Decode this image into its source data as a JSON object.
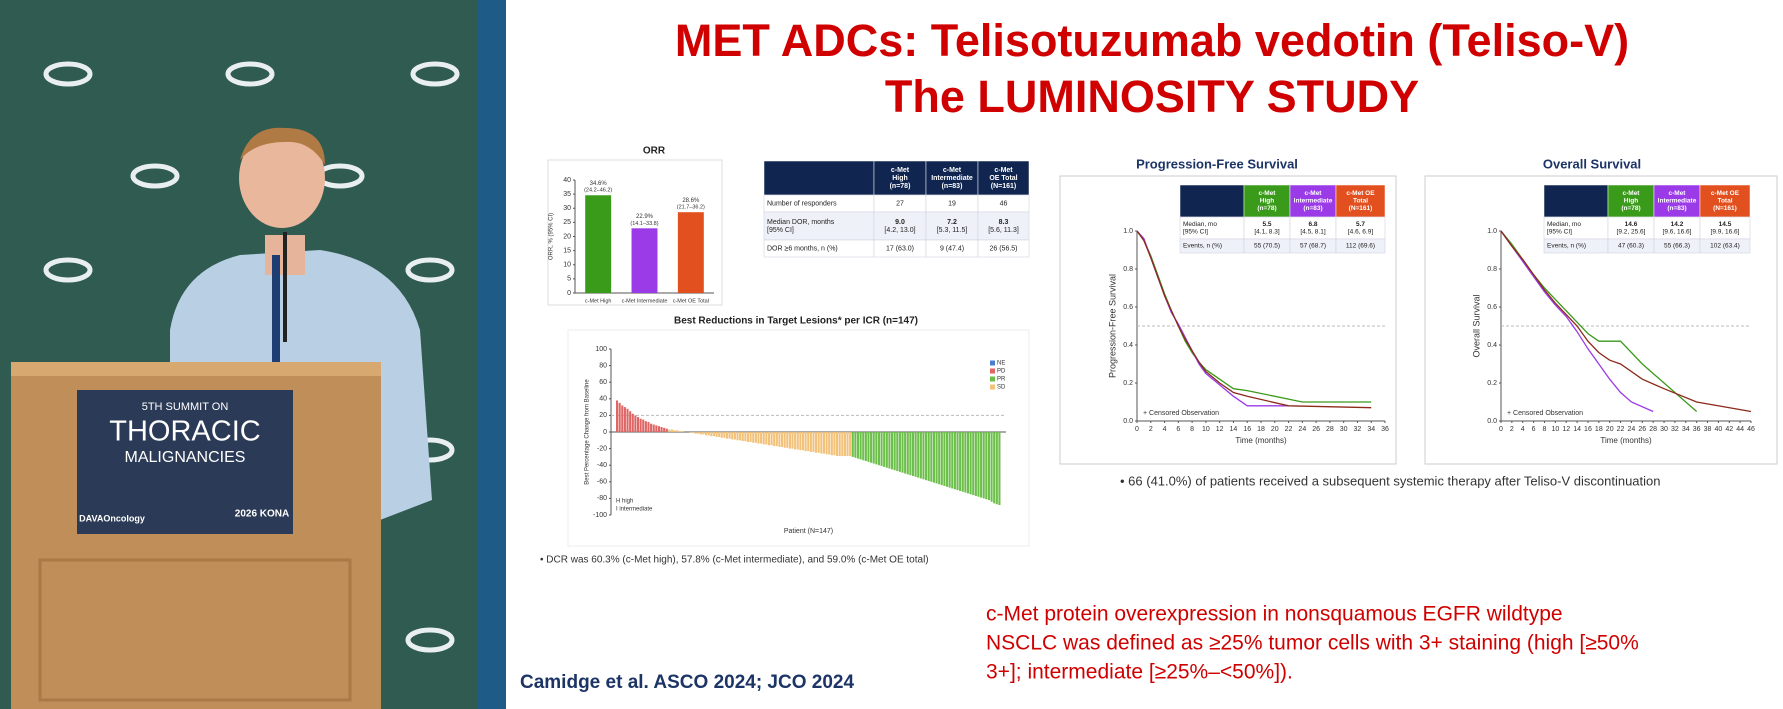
{
  "podium": {
    "line1": "5TH SUMMIT ON",
    "line2": "THORACIC",
    "line3": "MALIGNANCIES",
    "logo": "DAVAOncology",
    "badge": "2026 KONA"
  },
  "slide": {
    "title_line1": "MET ADCs: Telisotuzumab vedotin (Teliso-V)",
    "title_line2": "The LUMINOSITY STUDY",
    "dcr_note": "• DCR was 60.3% (c-Met high), 57.8% (c-Met intermediate), and 59.0% (c-Met OE total)",
    "subsequent_note": "•  66 (41.0%) of patients received a subsequent systemic therapy after Teliso-V discontinuation",
    "definition": [
      "c-Met protein overexpression in nonsquamous EGFR wildtype",
      "NSCLC was defined as ≥25% tumor cells with 3+ staining (high [≥50%",
      "3+]; intermediate [≥25%–<50%])."
    ],
    "citation": "Camidge et al.  ASCO 2024; JCO 2024"
  },
  "tables": {
    "dor": {
      "header_colors": [
        "#10254f",
        "#10254f",
        "#10254f",
        "#10254f"
      ],
      "header": [
        [],
        [
          "c-Met",
          "High",
          "(n=78)"
        ],
        [
          "c-Met",
          "Intermediate",
          "(n=83)"
        ],
        [
          "c-Met",
          "OE Total",
          "(N=161)"
        ]
      ],
      "rows": [
        [
          [
            "Number of responders"
          ],
          [
            "27"
          ],
          [
            "19"
          ],
          [
            "46"
          ]
        ],
        [
          [
            "Median DOR, months",
            "[95% CI]"
          ],
          [
            "9.0",
            "[4.2, 13.0]"
          ],
          [
            "7.2",
            "[5.3, 11.5]"
          ],
          [
            "8.3",
            "[5.6, 11.3]"
          ]
        ],
        [
          [
            "DOR ≥6 months, n (%)"
          ],
          [
            "17 (63.0)"
          ],
          [
            "9 (47.4)"
          ],
          [
            "26 (56.5)"
          ]
        ]
      ]
    },
    "pfs": {
      "header_colors": [
        "#10254f",
        "#3a9a1a",
        "#9b3be8",
        "#e2501f"
      ],
      "header": [
        [],
        [
          "c-Met",
          "High",
          "(n=78)"
        ],
        [
          "c-Met",
          "Intermediate",
          "(n=83)"
        ],
        [
          "c-Met OE",
          "Total",
          "(N=161)"
        ]
      ],
      "rows": [
        [
          [
            "Median, mo",
            "[95% CI]"
          ],
          [
            "5.5",
            "[4.1, 8.3]"
          ],
          [
            "6.8",
            "[4.5, 8.1]"
          ],
          [
            "5.7",
            "[4.6, 6.9]"
          ]
        ],
        [
          [
            "Events, n (%)"
          ],
          [
            "55 (70.5)"
          ],
          [
            "57 (68.7)"
          ],
          [
            "112 (69.6)"
          ]
        ]
      ]
    },
    "os": {
      "header_colors": [
        "#10254f",
        "#3a9a1a",
        "#9b3be8",
        "#e2501f"
      ],
      "header": [
        [],
        [
          "c-Met",
          "High",
          "(n=78)"
        ],
        [
          "c-Met",
          "Intermediate",
          "(n=83)"
        ],
        [
          "c-Met OE",
          "Total",
          "(N=161)"
        ]
      ],
      "rows": [
        [
          [
            "Median, mo",
            "[95% CI]"
          ],
          [
            "14.6",
            "[9.2, 25.6]"
          ],
          [
            "14.2",
            "[9.6, 16.6]"
          ],
          [
            "14.5",
            "[9.9, 16.6]"
          ]
        ],
        [
          [
            "Events, n (%)"
          ],
          [
            "47 (60.3)"
          ],
          [
            "55 (66.3)"
          ],
          [
            "102 (63.4)"
          ]
        ]
      ]
    }
  },
  "chart_data": [
    {
      "type": "bar",
      "title": "ORR",
      "ylabel": "ORR, % (95% CI)",
      "categories": [
        "c-Met High",
        "c-Met Intermediate",
        "c-Met OE Total"
      ],
      "values": [
        34.6,
        22.9,
        28.6
      ],
      "value_labels": [
        "34.6%",
        "22.9%",
        "28.6%"
      ],
      "ci_labels": [
        "(24.2–46.2)",
        "(14.1–33.8)",
        "(21.7–36.2)"
      ],
      "colors": [
        "#3a9a1a",
        "#9b3be8",
        "#e2501f"
      ],
      "ylim": [
        0,
        40
      ],
      "yticks": [
        0,
        5,
        10,
        15,
        20,
        25,
        30,
        35,
        40
      ]
    },
    {
      "type": "bar",
      "title": "Best Reductions in Target Lesions* per ICR (n=147)",
      "ylabel": "Best Percentage Change from Baseline",
      "xlabel": "Patient (N=147)",
      "annotations": [
        "H  high",
        "I  intermediate"
      ],
      "reference_line": 20,
      "ylim": [
        -100,
        100
      ],
      "yticks": [
        -100,
        -80,
        -60,
        -40,
        -20,
        0,
        20,
        40,
        60,
        80,
        100
      ],
      "series": [
        {
          "name": "NE",
          "color": "#4a7fd0",
          "values": []
        },
        {
          "name": "PD",
          "color": "#e06666",
          "values": [
            38,
            35,
            32,
            30,
            28,
            25,
            22,
            20,
            18,
            16,
            15,
            13,
            12,
            10,
            9,
            8,
            7,
            6,
            5,
            4
          ]
        },
        {
          "name": "PR",
          "color": "#6cbf4a",
          "values": [
            -30,
            -31,
            -32,
            -33,
            -34,
            -35,
            -36,
            -37,
            -38,
            -39,
            -40,
            -41,
            -42,
            -43,
            -44,
            -45,
            -46,
            -47,
            -48,
            -49,
            -50,
            -51,
            -52,
            -53,
            -54,
            -55,
            -56,
            -57,
            -58,
            -59,
            -60,
            -61,
            -62,
            -63,
            -64,
            -65,
            -66,
            -67,
            -68,
            -69,
            -70,
            -71,
            -72,
            -73,
            -74,
            -75,
            -76,
            -77,
            -78,
            -79,
            -80,
            -81,
            -82,
            -84,
            -86,
            -87,
            -88
          ]
        },
        {
          "name": "SD",
          "color": "#f2c27a",
          "values": [
            3,
            3,
            2,
            2,
            1,
            1,
            0,
            0,
            -1,
            -1,
            -2,
            -2,
            -3,
            -3,
            -4,
            -4,
            -5,
            -5,
            -6,
            -6,
            -7,
            -7,
            -8,
            -8,
            -9,
            -9,
            -10,
            -10,
            -11,
            -11,
            -12,
            -12,
            -13,
            -13,
            -14,
            -14,
            -15,
            -15,
            -16,
            -16,
            -17,
            -17,
            -18,
            -18,
            -19,
            -19,
            -20,
            -20,
            -21,
            -21,
            -22,
            -22,
            -23,
            -23,
            -24,
            -24,
            -25,
            -25,
            -26,
            -26,
            -27,
            -27,
            -28,
            -28,
            -29,
            -29,
            -29,
            -29,
            -29,
            -29
          ]
        }
      ],
      "draw_order": [
        "PD",
        "SD",
        "PR"
      ]
    },
    {
      "type": "line",
      "title": "Progression-Free Survival",
      "ylabel": "Progression-Free Survival",
      "xlabel": "Time (months)",
      "legend_text": "+ Censored Observation",
      "xlim": [
        0,
        36
      ],
      "xticks": [
        0,
        2,
        4,
        6,
        8,
        10,
        12,
        14,
        16,
        18,
        20,
        22,
        24,
        26,
        28,
        30,
        32,
        34,
        36
      ],
      "ylim": [
        0,
        1
      ],
      "yticks": [
        {
          "value": 0,
          "label": "0.0"
        },
        0.2,
        0.4,
        0.6,
        0.8,
        {
          "value": 1,
          "label": "1.0"
        }
      ],
      "series": [
        {
          "name": "c-Met High",
          "color": "#3a9a1a",
          "x": [
            0,
            1,
            2,
            3,
            4,
            5,
            6,
            7,
            8,
            9,
            10,
            12,
            14,
            16,
            24,
            34
          ],
          "y": [
            1,
            0.95,
            0.87,
            0.77,
            0.67,
            0.58,
            0.5,
            0.42,
            0.36,
            0.31,
            0.27,
            0.22,
            0.17,
            0.16,
            0.1,
            0.1
          ]
        },
        {
          "name": "c-Met Intermediate",
          "color": "#9b3be8",
          "x": [
            0,
            1,
            2,
            3,
            4,
            5,
            6,
            7,
            8,
            9,
            10,
            12,
            14,
            16,
            22
          ],
          "y": [
            1,
            0.96,
            0.86,
            0.76,
            0.66,
            0.57,
            0.51,
            0.44,
            0.37,
            0.3,
            0.25,
            0.19,
            0.13,
            0.08,
            0.08
          ]
        },
        {
          "name": "c-Met OE Total",
          "color": "#8b2a1a",
          "x": [
            0,
            1,
            2,
            3,
            4,
            5,
            6,
            7,
            8,
            9,
            10,
            12,
            14,
            16,
            22,
            34
          ],
          "y": [
            1,
            0.95,
            0.86,
            0.76,
            0.66,
            0.58,
            0.5,
            0.43,
            0.37,
            0.31,
            0.26,
            0.2,
            0.15,
            0.13,
            0.08,
            0.07
          ]
        }
      ]
    },
    {
      "type": "line",
      "title": "Overall Survival",
      "ylabel": "Overall Survival",
      "xlabel": "Time (months)",
      "legend_text": "+ Censored Observation",
      "xlim": [
        0,
        46
      ],
      "xticks": [
        0,
        2,
        4,
        6,
        8,
        10,
        12,
        14,
        16,
        18,
        20,
        22,
        24,
        26,
        28,
        30,
        32,
        34,
        36,
        38,
        40,
        42,
        44,
        46
      ],
      "ylim": [
        0,
        1
      ],
      "yticks": [
        {
          "value": 0,
          "label": "0.0"
        },
        0.2,
        0.4,
        0.6,
        0.8,
        {
          "value": 1,
          "label": "1.0"
        }
      ],
      "series": [
        {
          "name": "c-Met High",
          "color": "#3a9a1a",
          "x": [
            0,
            2,
            4,
            6,
            8,
            10,
            12,
            14,
            16,
            18,
            20,
            22,
            26,
            30,
            36
          ],
          "y": [
            1,
            0.93,
            0.85,
            0.77,
            0.7,
            0.64,
            0.58,
            0.52,
            0.46,
            0.42,
            0.42,
            0.42,
            0.3,
            0.2,
            0.05
          ]
        },
        {
          "name": "c-Met Intermediate",
          "color": "#9b3be8",
          "x": [
            0,
            2,
            4,
            6,
            8,
            10,
            12,
            14,
            16,
            18,
            20,
            22,
            24,
            28
          ],
          "y": [
            1,
            0.92,
            0.84,
            0.76,
            0.68,
            0.61,
            0.55,
            0.47,
            0.38,
            0.3,
            0.22,
            0.15,
            0.1,
            0.05
          ]
        },
        {
          "name": "c-Met OE Total",
          "color": "#8b2a1a",
          "x": [
            0,
            2,
            4,
            6,
            8,
            10,
            12,
            14,
            16,
            18,
            20,
            22,
            26,
            30,
            36,
            46
          ],
          "y": [
            1,
            0.92,
            0.85,
            0.77,
            0.69,
            0.62,
            0.56,
            0.5,
            0.42,
            0.36,
            0.32,
            0.3,
            0.22,
            0.17,
            0.1,
            0.05
          ]
        }
      ]
    }
  ]
}
